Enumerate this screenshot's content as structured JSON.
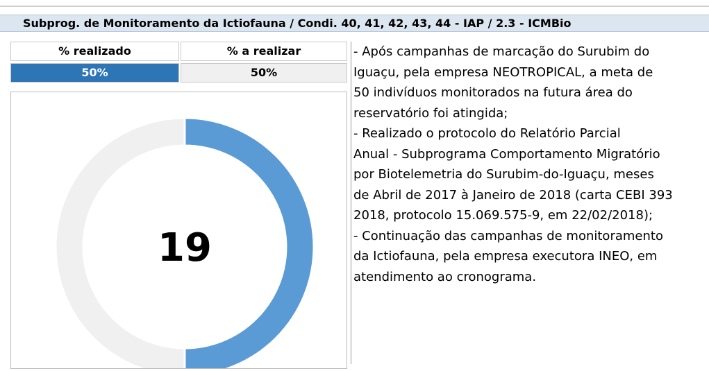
{
  "header": {
    "title": "Subprog. de Monitoramento da Ictiofauna / Condi. 40, 41, 42, 43, 44 - IAP / 2.3 - ICMBio"
  },
  "table": {
    "headers": [
      "% realizado",
      "% a realizar"
    ],
    "rows": [
      [
        "50%",
        "50%"
      ]
    ]
  },
  "chart_data": {
    "type": "donut",
    "categories": [
      "% realizado",
      "% a realizar"
    ],
    "values": [
      50,
      50
    ],
    "colors": [
      "#5b9bd5",
      "#f0f0f0"
    ],
    "center_label": "19"
  },
  "notes": {
    "lines": [
      "- Após campanhas de marcação do Surubim do",
      "Iguaçu, pela empresa NEOTROPICAL, a meta de",
      "50 indivíduos monitorados na futura área do",
      "reservatório foi atingida;",
      "- Realizado o protocolo do Relatório Parcial",
      "Anual - Subprograma Comportamento Migratório",
      "por Biotelemetria do Surubim-do-Iguaçu, meses",
      "de Abril de 2017 à Janeiro de 2018 (carta CEBI 393",
      "2018, protocolo 15.069.575-9, em 22/02/2018);",
      "- Continuação das campanhas de monitoramento",
      "da Ictiofauna, pela empresa executora INEO, em",
      "atendimento ao cronograma."
    ]
  }
}
